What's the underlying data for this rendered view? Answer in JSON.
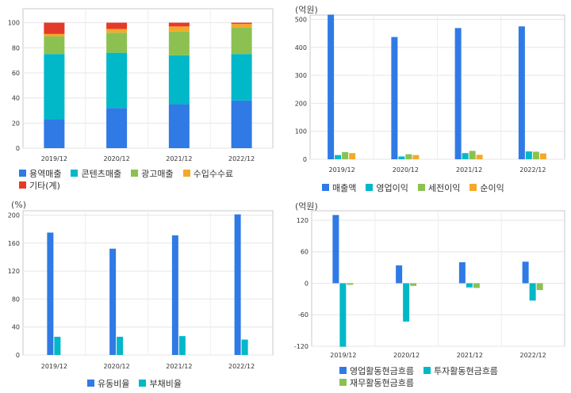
{
  "chart_data": [
    {
      "id": "revenue_mix",
      "type": "bar",
      "stacked": true,
      "unit": "",
      "categories": [
        "2019/12",
        "2020/12",
        "2021/12",
        "2022/12"
      ],
      "ylim": [
        0,
        100
      ],
      "yticks": [
        0,
        20,
        40,
        60,
        80,
        100
      ],
      "grid": true,
      "legend_position": "bottom",
      "series": [
        {
          "name": "용역매출",
          "color": "#2f7ae5",
          "values": [
            23,
            32,
            35,
            38
          ]
        },
        {
          "name": "콘텐츠매출",
          "color": "#00b8c8",
          "values": [
            52,
            44,
            39,
            37
          ]
        },
        {
          "name": "광고매출",
          "color": "#8cc152",
          "values": [
            14,
            16,
            19,
            21
          ]
        },
        {
          "name": "수입수수료",
          "color": "#f4a92b",
          "values": [
            2,
            3,
            4,
            3
          ]
        },
        {
          "name": "기타(계)",
          "color": "#e53a29",
          "values": [
            9,
            5,
            3,
            1
          ]
        }
      ]
    },
    {
      "id": "profit",
      "type": "bar",
      "stacked": false,
      "unit": "(억원)",
      "categories": [
        "2019/12",
        "2020/12",
        "2021/12",
        "2022/12"
      ],
      "ylim": [
        0,
        500
      ],
      "yticks": [
        0,
        100,
        200,
        300,
        400,
        500
      ],
      "grid": true,
      "legend_position": "bottom",
      "series": [
        {
          "name": "매출액",
          "color": "#2f7ae5",
          "values": [
            517,
            437,
            469,
            475
          ]
        },
        {
          "name": "영업이익",
          "color": "#00b8c8",
          "values": [
            15,
            10,
            22,
            28
          ]
        },
        {
          "name": "세전이익",
          "color": "#8cc152",
          "values": [
            26,
            18,
            30,
            27
          ]
        },
        {
          "name": "순이익",
          "color": "#f4a92b",
          "values": [
            22,
            15,
            16,
            21
          ]
        }
      ]
    },
    {
      "id": "ratio",
      "type": "bar",
      "stacked": false,
      "unit": "(%)",
      "categories": [
        "2019/12",
        "2020/12",
        "2021/12",
        "2022/12"
      ],
      "ylim": [
        0,
        200
      ],
      "yticks": [
        0,
        40,
        80,
        120,
        160,
        200
      ],
      "grid": true,
      "legend_position": "bottom",
      "series": [
        {
          "name": "유동비율",
          "color": "#2f7ae5",
          "values": [
            175,
            152,
            171,
            201
          ]
        },
        {
          "name": "부채비율",
          "color": "#00b8c8",
          "values": [
            26,
            26,
            27,
            22
          ]
        }
      ]
    },
    {
      "id": "cashflow",
      "type": "bar",
      "stacked": false,
      "unit": "(억원)",
      "categories": [
        "2019/12",
        "2020/12",
        "2021/12",
        "2022/12"
      ],
      "ylim": [
        -120,
        120
      ],
      "yticks": [
        -120,
        -60,
        0,
        60,
        120
      ],
      "grid": true,
      "legend_position": "bottom",
      "series": [
        {
          "name": "영업활동현금흐름",
          "color": "#2f7ae5",
          "values": [
            130,
            34,
            40,
            41
          ]
        },
        {
          "name": "투자활동현금흐름",
          "color": "#00b8c8",
          "values": [
            -121,
            -73,
            -8,
            -33
          ]
        },
        {
          "name": "재무활동현금흐름",
          "color": "#8cc152",
          "values": [
            -3,
            -5,
            -9,
            -13
          ]
        }
      ]
    }
  ]
}
